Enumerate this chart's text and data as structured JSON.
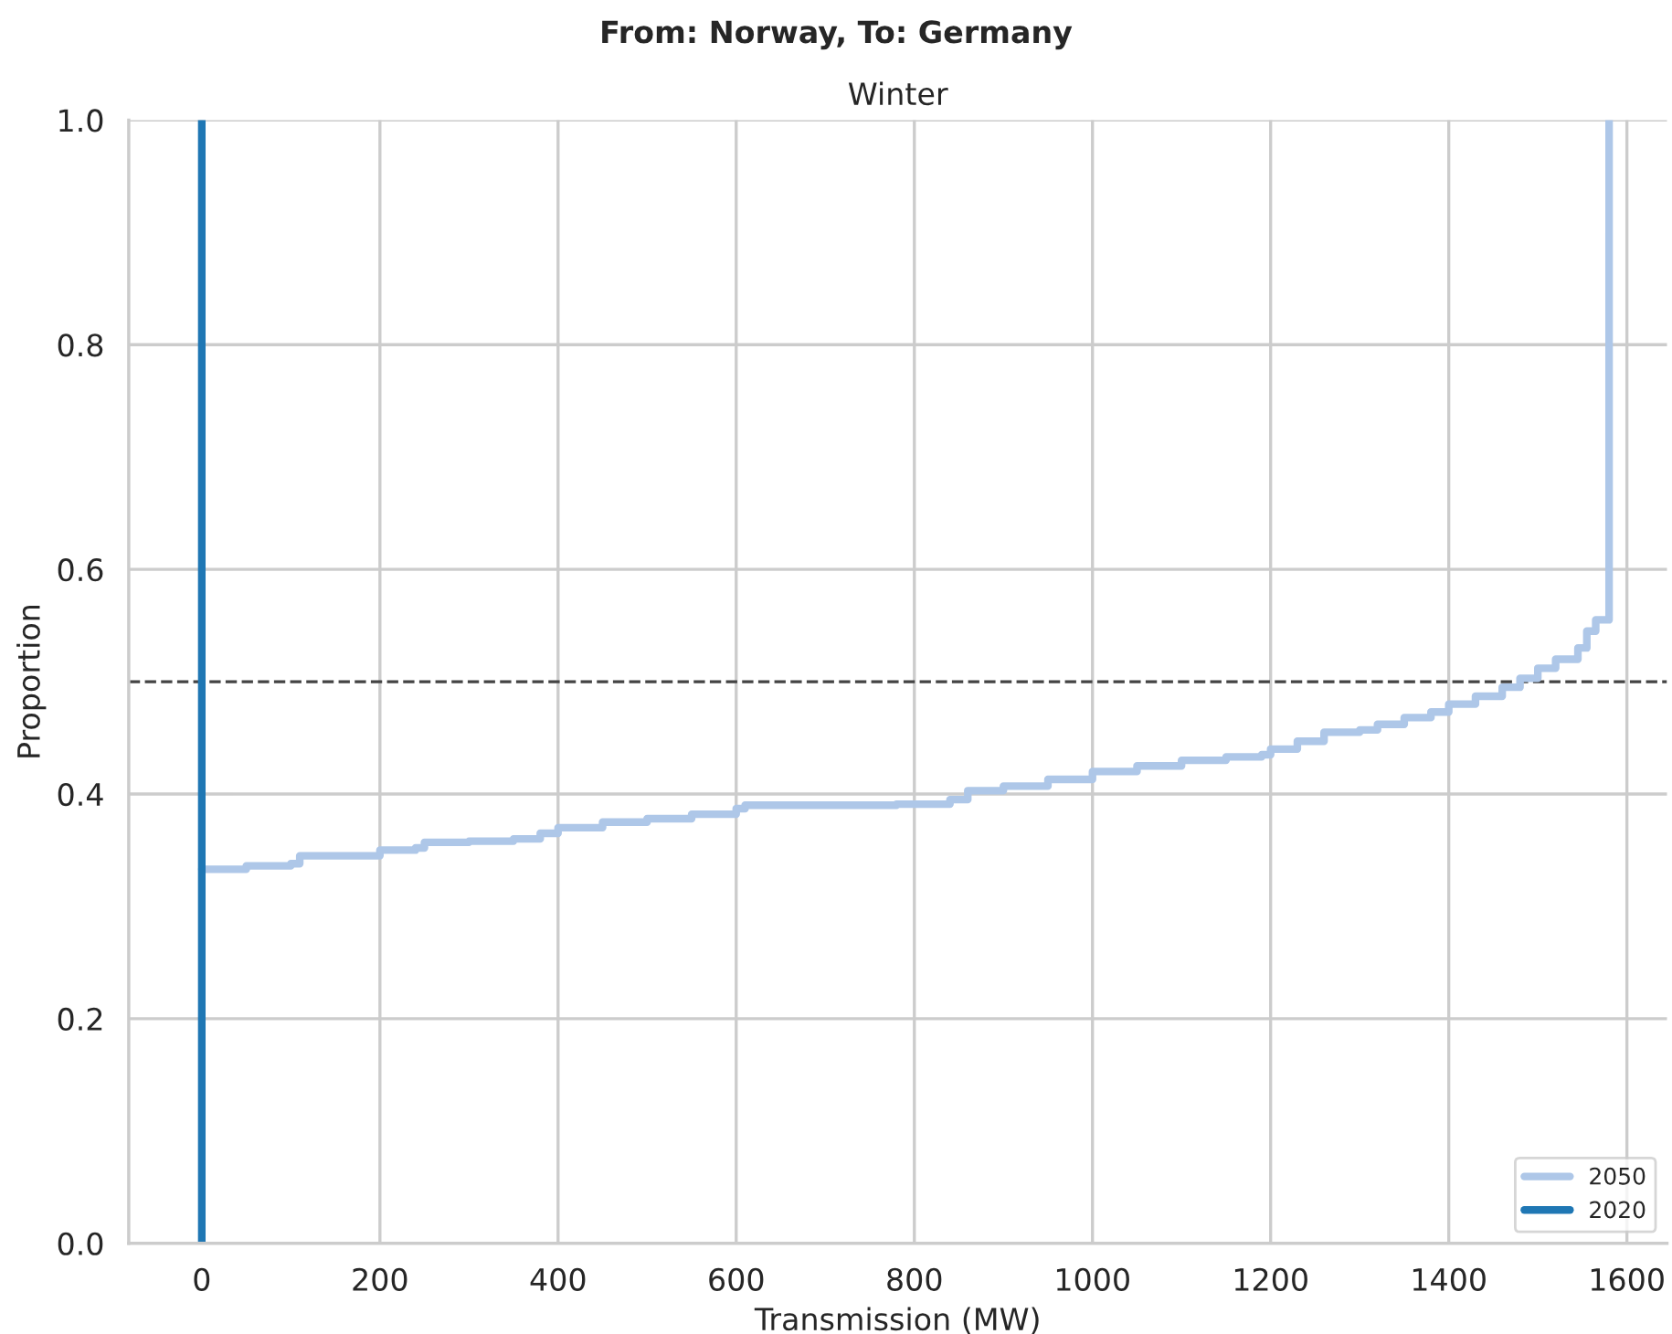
{
  "chart_data": {
    "type": "step",
    "title": "From: Norway, To: Germany",
    "subtitle": "Winter",
    "xlabel": "Transmission (MW)",
    "ylabel": "Proportion",
    "xlim": [
      -82,
      1645
    ],
    "xticks": [
      0,
      200,
      400,
      600,
      800,
      1000,
      1200,
      1400,
      1600
    ],
    "ylim": [
      0,
      1
    ],
    "yticks": [
      {
        "value": 0,
        "label": "0.0"
      },
      0.2,
      0.4,
      0.6,
      0.8,
      {
        "value": 1,
        "label": "1.0"
      }
    ],
    "grid": true,
    "legend": "bottom right",
    "line_style": "solid",
    "ref_lines": [
      {
        "axis": "y",
        "value": 0.5,
        "label": null,
        "color": "#444444",
        "line_style": "dashed"
      }
    ],
    "series": [
      {
        "name": "2050",
        "color": "#aec7e8",
        "x": [
          0,
          30,
          50,
          100,
          110,
          200,
          240,
          250,
          300,
          350,
          380,
          400,
          450,
          500,
          550,
          600,
          610,
          700,
          780,
          840,
          860,
          900,
          950,
          1000,
          1050,
          1100,
          1150,
          1190,
          1200,
          1230,
          1260,
          1300,
          1320,
          1350,
          1380,
          1400,
          1430,
          1460,
          1480,
          1500,
          1520,
          1545,
          1555,
          1565,
          1580,
          1580
        ],
        "values": [
          0.333,
          0.333,
          0.336,
          0.338,
          0.345,
          0.35,
          0.352,
          0.357,
          0.358,
          0.36,
          0.365,
          0.37,
          0.375,
          0.378,
          0.382,
          0.387,
          0.39,
          0.39,
          0.391,
          0.395,
          0.403,
          0.407,
          0.413,
          0.42,
          0.425,
          0.43,
          0.433,
          0.435,
          0.44,
          0.447,
          0.455,
          0.457,
          0.462,
          0.468,
          0.473,
          0.48,
          0.487,
          0.495,
          0.503,
          0.512,
          0.52,
          0.53,
          0.545,
          0.555,
          0.56,
          1.0
        ]
      },
      {
        "name": "2020",
        "color": "#1f77b4",
        "x": [
          0,
          0
        ],
        "values": [
          0,
          1
        ]
      }
    ]
  }
}
